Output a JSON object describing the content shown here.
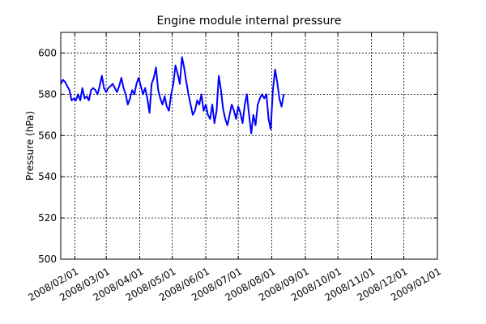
{
  "chart_data": {
    "type": "line",
    "title": "Engine module internal pressure",
    "xlabel": "",
    "ylabel": "Pressure (hPa)",
    "grid": true,
    "xlim": [
      "2008-01-19",
      "2009-01-01"
    ],
    "ylim": [
      500,
      610
    ],
    "x_ticks": [
      "2008/02/01",
      "2008/03/01",
      "2008/04/01",
      "2008/05/01",
      "2008/06/01",
      "2008/07/01",
      "2008/08/01",
      "2008/09/01",
      "2008/10/01",
      "2008/11/01",
      "2008/12/01",
      "2009/01/01"
    ],
    "y_ticks": [
      500,
      520,
      540,
      560,
      580,
      600
    ],
    "series": [
      {
        "color": "#0000ff",
        "x": [
          "2008-01-19",
          "2008-01-21",
          "2008-01-23",
          "2008-01-25",
          "2008-01-27",
          "2008-01-29",
          "2008-01-31",
          "2008-02-02",
          "2008-02-04",
          "2008-02-06",
          "2008-02-08",
          "2008-02-10",
          "2008-02-12",
          "2008-02-14",
          "2008-02-16",
          "2008-02-18",
          "2008-02-20",
          "2008-02-22",
          "2008-02-24",
          "2008-02-26",
          "2008-02-28",
          "2008-03-01",
          "2008-03-03",
          "2008-03-05",
          "2008-03-07",
          "2008-03-09",
          "2008-03-11",
          "2008-03-13",
          "2008-03-15",
          "2008-03-17",
          "2008-03-19",
          "2008-03-21",
          "2008-03-23",
          "2008-03-25",
          "2008-03-27",
          "2008-03-29",
          "2008-03-31",
          "2008-04-02",
          "2008-04-04",
          "2008-04-06",
          "2008-04-08",
          "2008-04-10",
          "2008-04-12",
          "2008-04-14",
          "2008-04-16",
          "2008-04-18",
          "2008-04-20",
          "2008-04-22",
          "2008-04-24",
          "2008-04-26",
          "2008-04-28",
          "2008-04-30",
          "2008-05-02",
          "2008-05-04",
          "2008-05-06",
          "2008-05-08",
          "2008-05-10",
          "2008-05-12",
          "2008-05-14",
          "2008-05-16",
          "2008-05-18",
          "2008-05-20",
          "2008-05-22",
          "2008-05-24",
          "2008-05-26",
          "2008-05-28",
          "2008-05-30",
          "2008-06-01",
          "2008-06-03",
          "2008-06-05",
          "2008-06-07",
          "2008-06-09",
          "2008-06-11",
          "2008-06-13",
          "2008-06-15",
          "2008-06-17",
          "2008-06-19",
          "2008-06-21",
          "2008-06-23",
          "2008-06-25",
          "2008-06-27",
          "2008-06-29",
          "2008-07-01",
          "2008-07-03",
          "2008-07-05",
          "2008-07-07",
          "2008-07-09",
          "2008-07-11",
          "2008-07-13",
          "2008-07-15",
          "2008-07-17",
          "2008-07-19",
          "2008-07-21",
          "2008-07-23",
          "2008-07-25",
          "2008-07-27",
          "2008-07-29",
          "2008-07-31",
          "2008-08-02",
          "2008-08-04",
          "2008-08-06",
          "2008-08-08",
          "2008-08-10",
          "2008-08-12"
        ],
        "y": [
          585,
          587,
          586,
          584,
          582,
          577,
          578,
          577,
          580,
          577,
          583,
          578,
          579,
          577,
          582,
          583,
          582,
          580,
          584,
          589,
          583,
          581,
          583,
          584,
          585,
          583,
          581,
          584,
          588,
          583,
          580,
          575,
          578,
          582,
          580,
          585,
          588,
          584,
          580,
          583,
          578,
          571,
          585,
          588,
          593,
          582,
          578,
          575,
          579,
          574,
          572,
          580,
          585,
          594,
          590,
          585,
          598,
          593,
          586,
          580,
          575,
          570,
          572,
          577,
          575,
          580,
          572,
          575,
          570,
          568,
          575,
          566,
          572,
          589,
          582,
          573,
          568,
          565,
          570,
          575,
          572,
          568,
          574,
          571,
          566,
          575,
          580,
          570,
          561,
          570,
          565,
          575,
          578,
          580,
          578,
          580,
          568,
          563,
          582,
          592,
          586,
          578,
          574,
          580
        ]
      }
    ]
  }
}
